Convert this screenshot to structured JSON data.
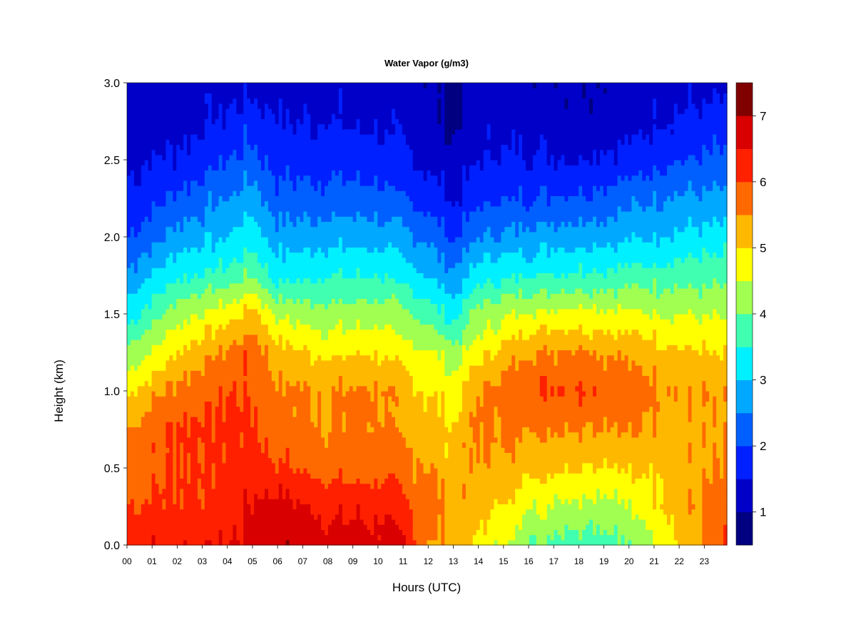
{
  "chart_data": {
    "type": "heatmap",
    "title": "Water Vapor (g/m3)",
    "xlabel": "Hours (UTC)",
    "ylabel": "Height (km)",
    "xlim": [
      0,
      23.9
    ],
    "ylim": [
      0.0,
      3.0
    ],
    "x_ticks": [
      "00",
      "01",
      "02",
      "03",
      "04",
      "05",
      "06",
      "07",
      "08",
      "09",
      "10",
      "11",
      "12",
      "13",
      "14",
      "15",
      "16",
      "17",
      "18",
      "19",
      "20",
      "21",
      "22",
      "23"
    ],
    "y_ticks": [
      "0.0",
      "0.5",
      "1.0",
      "1.5",
      "2.0",
      "2.5",
      "3.0"
    ],
    "colorbar": {
      "levels": [
        0.5,
        1.0,
        1.5,
        2.0,
        2.5,
        3.0,
        3.5,
        4.0,
        4.5,
        5.0,
        5.5,
        6.0,
        6.5,
        7.0,
        7.5
      ],
      "colors": [
        "#000080",
        "#0000c8",
        "#0020ff",
        "#0060ff",
        "#00a8ff",
        "#00f0ff",
        "#40ffb0",
        "#a0ff50",
        "#ffff00",
        "#ffb800",
        "#ff6a00",
        "#ff2000",
        "#d80000",
        "#800000"
      ],
      "ticks": [
        "1",
        "2",
        "3",
        "4",
        "5",
        "6",
        "7"
      ]
    },
    "profiles": [
      {
        "hour": 0,
        "values": [
          6.4,
          6.0,
          5.8,
          5.5,
          4.9,
          4.1,
          3.3,
          2.6,
          2.0,
          1.6,
          1.4,
          1.3,
          1.2
        ]
      },
      {
        "hour": 2,
        "values": [
          6.5,
          6.1,
          6.0,
          6.1,
          5.7,
          5.0,
          4.3,
          3.4,
          2.7,
          2.1,
          1.6,
          1.3,
          1.2
        ]
      },
      {
        "hour": 4,
        "values": [
          6.5,
          6.2,
          6.1,
          6.1,
          6.0,
          5.6,
          4.8,
          3.7,
          3.0,
          2.5,
          2.0,
          1.6,
          1.3
        ]
      },
      {
        "hour": 5,
        "values": [
          6.7,
          6.6,
          6.2,
          6.1,
          6.0,
          5.9,
          5.2,
          4.0,
          3.3,
          2.8,
          2.2,
          1.8,
          1.3
        ]
      },
      {
        "hour": 6,
        "values": [
          6.9,
          6.7,
          6.1,
          5.7,
          5.6,
          5.2,
          4.4,
          3.3,
          2.7,
          2.2,
          1.8,
          1.5,
          1.3
        ]
      },
      {
        "hour": 8,
        "values": [
          6.7,
          6.4,
          5.8,
          5.5,
          5.5,
          4.9,
          4.2,
          3.5,
          2.8,
          2.2,
          1.8,
          1.5,
          1.3
        ]
      },
      {
        "hour": 10,
        "values": [
          6.7,
          6.4,
          5.8,
          5.6,
          5.6,
          5.0,
          4.3,
          3.5,
          2.8,
          2.2,
          1.7,
          1.4,
          1.3
        ]
      },
      {
        "hour": 11,
        "values": [
          6.6,
          6.1,
          5.7,
          5.4,
          5.2,
          4.7,
          4.1,
          3.3,
          2.6,
          2.0,
          1.6,
          1.3,
          1.2
        ]
      },
      {
        "hour": 12,
        "values": [
          5.5,
          5.7,
          5.5,
          5.2,
          5.0,
          4.6,
          3.8,
          3.0,
          2.4,
          1.8,
          1.4,
          1.2,
          1.1
        ]
      },
      {
        "hour": 13,
        "values": [
          5.3,
          5.4,
          5.2,
          5.0,
          4.7,
          4.2,
          3.3,
          2.6,
          1.9,
          1.4,
          1.1,
          0.9,
          0.9
        ]
      },
      {
        "hour": 14,
        "values": [
          4.8,
          5.3,
          5.5,
          5.6,
          5.5,
          4.8,
          4.2,
          3.3,
          2.5,
          1.9,
          1.5,
          1.3,
          1.2
        ]
      },
      {
        "hour": 16,
        "values": [
          4.1,
          4.6,
          5.2,
          5.6,
          6.0,
          5.5,
          4.6,
          3.5,
          2.7,
          2.0,
          1.6,
          1.3,
          1.2
        ]
      },
      {
        "hour": 18,
        "values": [
          3.8,
          4.4,
          5.1,
          5.6,
          6.1,
          5.6,
          4.7,
          3.6,
          2.8,
          2.1,
          1.5,
          1.2,
          1.1
        ]
      },
      {
        "hour": 20,
        "values": [
          3.9,
          4.4,
          5.0,
          5.5,
          5.8,
          5.4,
          4.6,
          3.7,
          2.9,
          2.3,
          1.7,
          1.3,
          1.2
        ]
      },
      {
        "hour": 22,
        "values": [
          5.0,
          5.4,
          5.3,
          5.4,
          5.5,
          5.1,
          4.5,
          3.8,
          3.1,
          2.6,
          2.0,
          1.6,
          1.3
        ]
      },
      {
        "hour": 23.9,
        "values": [
          6.0,
          5.7,
          5.5,
          5.4,
          5.4,
          4.9,
          4.4,
          3.8,
          3.2,
          2.6,
          2.1,
          1.7,
          1.3
        ]
      }
    ],
    "profile_heights": [
      0.0,
      0.25,
      0.5,
      0.75,
      1.0,
      1.25,
      1.5,
      1.75,
      2.0,
      2.25,
      2.5,
      2.75,
      3.0
    ]
  }
}
